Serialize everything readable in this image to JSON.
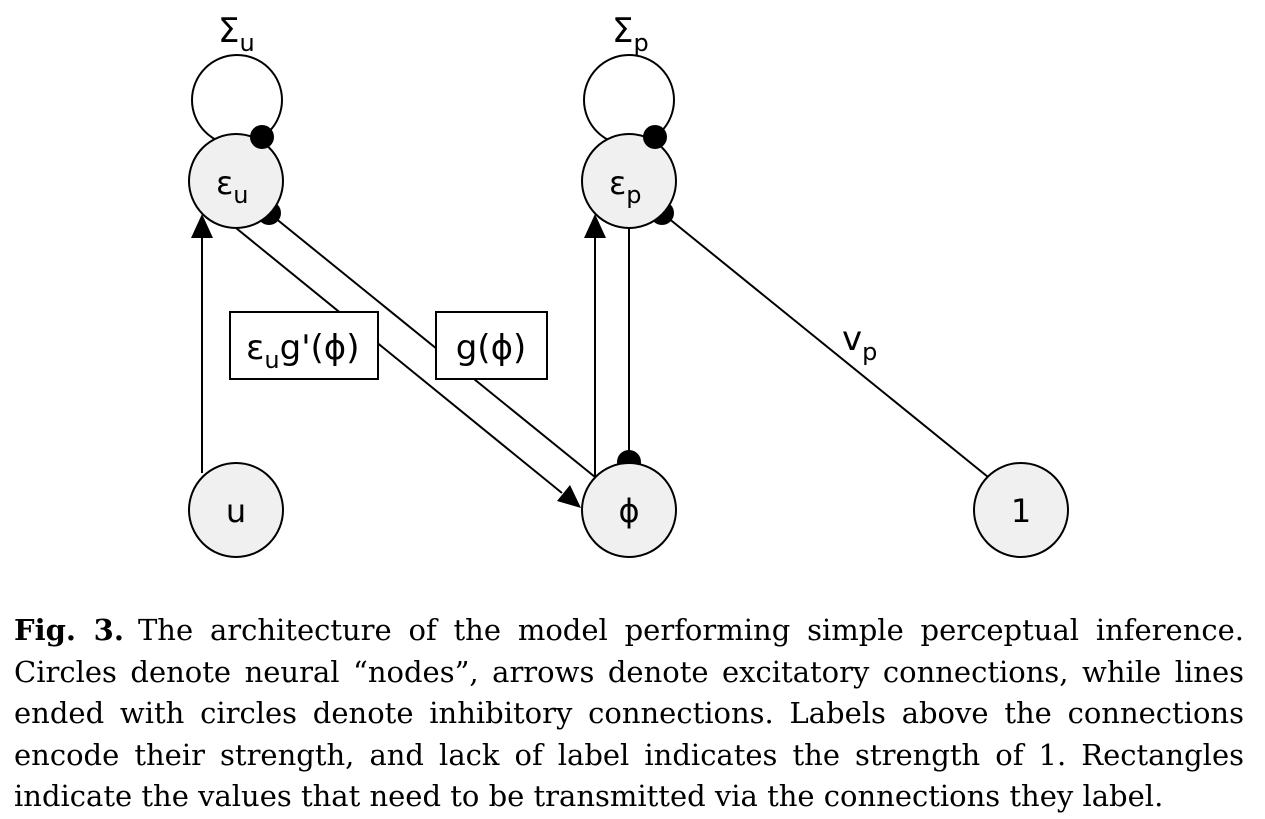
{
  "diagram": {
    "nodes": {
      "eps_u": {
        "symbol": "ε",
        "sub": "u"
      },
      "eps_p": {
        "symbol": "ε",
        "sub": "p"
      },
      "u": {
        "label": "u"
      },
      "phi": {
        "label": "ϕ"
      },
      "one": {
        "label": "1"
      }
    },
    "self_loops": {
      "sigma_u": {
        "symbol": "Σ",
        "sub": "u"
      },
      "sigma_p": {
        "symbol": "Σ",
        "sub": "p"
      }
    },
    "edge_labels": {
      "v_p": {
        "symbol": "v",
        "sub": "p"
      }
    },
    "boxes": {
      "eps_g_prime": {
        "eps": "ε",
        "sub": "u",
        "rest": "g'(ϕ)"
      },
      "g_phi": {
        "text": "g(ϕ)"
      }
    }
  },
  "caption": {
    "label": "Fig. 3.",
    "text": "The architecture of the model performing simple perceptual inference. Circles denote neural “nodes”, arrows denote excitatory connections, while lines ended with circles denote inhibitory connections. Labels above the connections encode their strength, and lack of label indicates the strength of 1. Rectangles indicate the values that need to be transmitted via the connections they label."
  }
}
